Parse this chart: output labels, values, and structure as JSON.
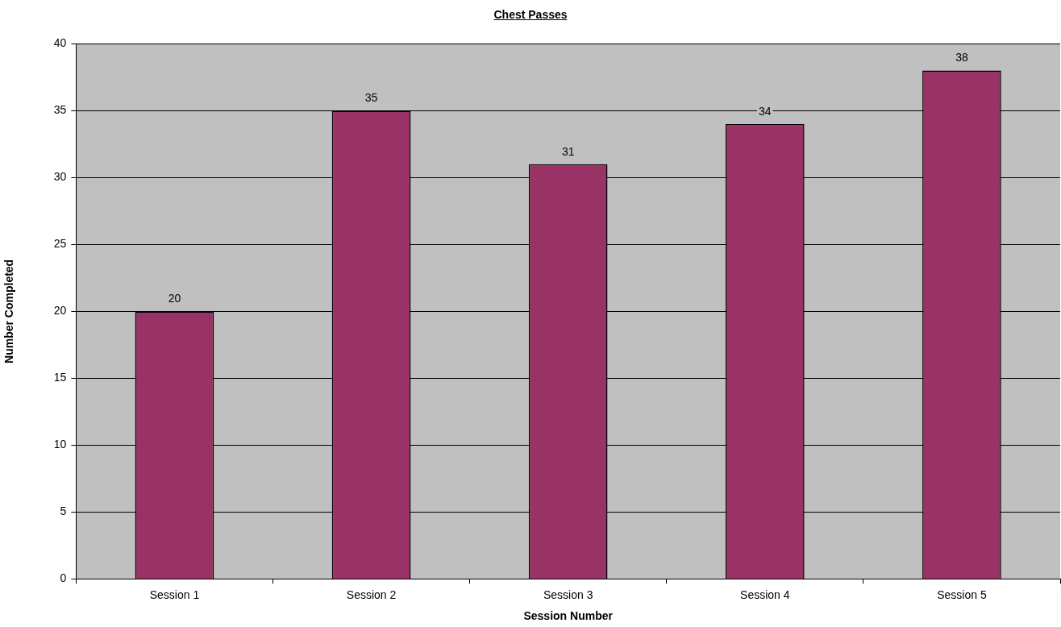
{
  "chart_data": {
    "type": "bar",
    "title": "Chest Passes",
    "xlabel": "Session Number",
    "ylabel": "Number Completed",
    "categories": [
      "Session 1",
      "Session 2",
      "Session 3",
      "Session 4",
      "Session 5"
    ],
    "values": [
      20,
      35,
      31,
      34,
      38
    ],
    "color": "#993366",
    "ylim": [
      0,
      40
    ],
    "yticks": [
      0,
      5,
      10,
      15,
      20,
      25,
      30,
      35,
      40
    ],
    "grid": "y",
    "data_labels": true,
    "legend": false
  }
}
